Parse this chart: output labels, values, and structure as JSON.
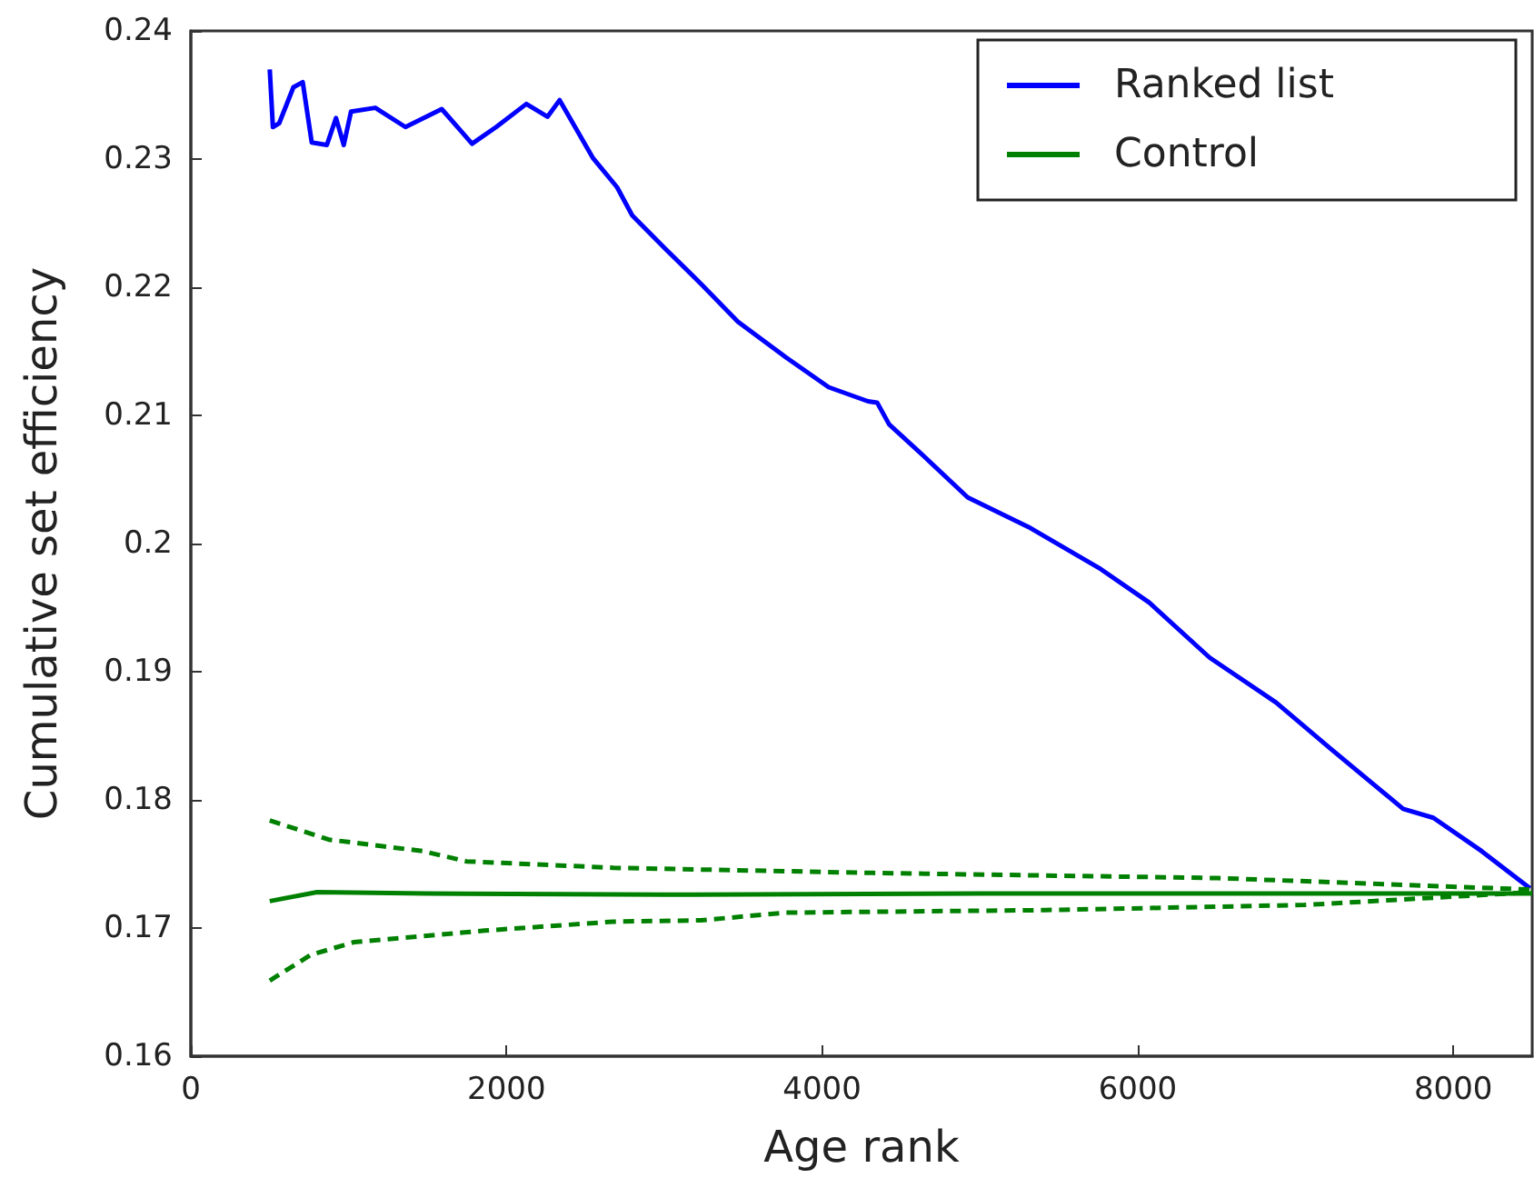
{
  "chart_data": {
    "type": "line",
    "xlabel": "Age rank",
    "ylabel": "Cumulative set efficiency",
    "xlim": [
      0,
      8500
    ],
    "xticks": [
      0,
      2000,
      4000,
      6000,
      8000
    ],
    "ylim": [
      0.16,
      0.24
    ],
    "yticks": [
      0.16,
      0.17,
      0.18,
      0.19,
      0.2,
      0.21,
      0.22,
      0.23,
      0.24
    ],
    "grid": false,
    "legend": "top right",
    "marker": "none",
    "series": [
      {
        "name": "Ranked list",
        "color": "#0000ff",
        "line_style": "solid",
        "x": [
          500,
          520,
          560,
          650,
          709,
          766,
          862,
          920,
          969,
          1015,
          1169,
          1360,
          1590,
          1782,
          1935,
          2126,
          2260,
          2337,
          2547,
          2701,
          2797,
          3007,
          3238,
          3467,
          3774,
          4042,
          4291,
          4349,
          4425,
          4655,
          4923,
          5307,
          5767,
          6073,
          6456,
          6877,
          7222,
          7682,
          7874,
          8180,
          8486
        ],
        "values": [
          0.237,
          0.2325,
          0.2328,
          0.2356,
          0.236,
          0.2313,
          0.2311,
          0.2332,
          0.2311,
          0.2337,
          0.234,
          0.2325,
          0.2339,
          0.2312,
          0.2325,
          0.2343,
          0.2333,
          0.2346,
          0.2301,
          0.2278,
          0.2256,
          0.223,
          0.2202,
          0.2173,
          0.2145,
          0.2122,
          0.2111,
          0.211,
          0.2093,
          0.2067,
          0.2036,
          0.2013,
          0.198,
          0.1954,
          0.1911,
          0.1876,
          0.184,
          0.1793,
          0.1786,
          0.176,
          0.1731
        ]
      },
      {
        "name": "Control",
        "color": "#008000",
        "line_style": "solid",
        "x": [
          500,
          800,
          1500,
          3000,
          5000,
          7000,
          8500
        ],
        "values": [
          0.1721,
          0.1728,
          0.1727,
          0.1726,
          0.1727,
          0.1727,
          0.1727
        ]
      },
      {
        "color": "#008000",
        "line_style": "dashed",
        "x": [
          500,
          874,
          1471,
          1747,
          2678,
          4322,
          6506,
          8500
        ],
        "values": [
          0.1784,
          0.1769,
          0.176,
          0.1752,
          0.1747,
          0.1743,
          0.1739,
          0.173
        ]
      },
      {
        "color": "#008000",
        "line_style": "dashed",
        "x": [
          500,
          759,
          1034,
          1862,
          2678,
          3230,
          3770,
          5414,
          7057,
          8500
        ],
        "values": [
          0.1659,
          0.1679,
          0.1689,
          0.1698,
          0.1705,
          0.1706,
          0.1712,
          0.1714,
          0.1718,
          0.1728
        ]
      }
    ]
  }
}
